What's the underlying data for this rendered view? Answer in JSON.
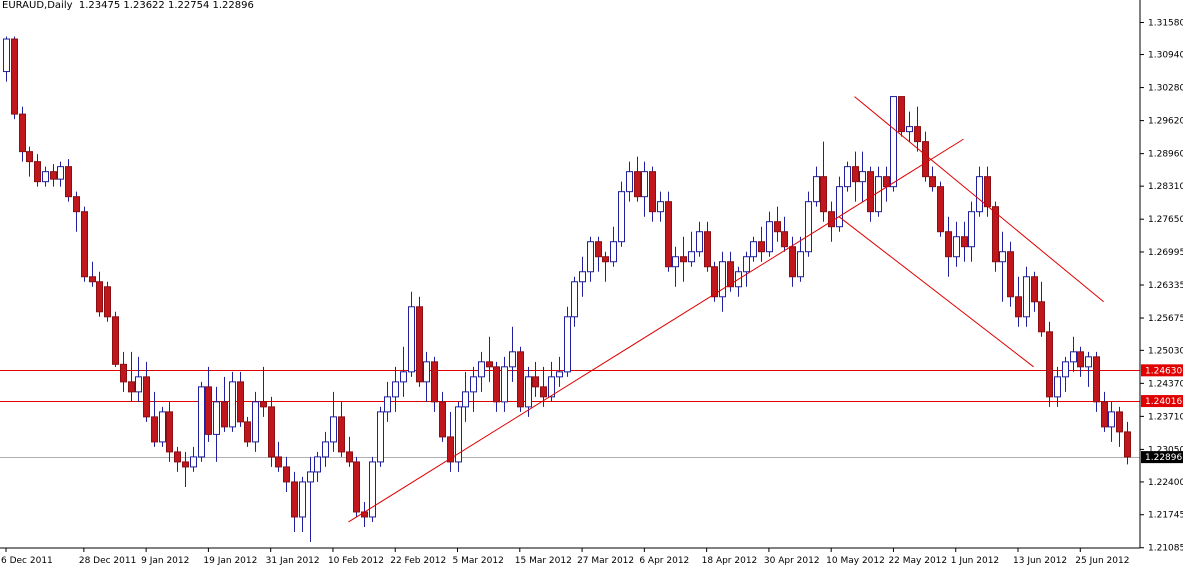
{
  "header": {
    "symbol_timeframe": "EURAUD,Daily",
    "ohlc": "1.23475 1.23622 1.22754 1.22896"
  },
  "colors": {
    "bull_fill": "#ffffff",
    "bear_fill": "#c0161c",
    "wick": "#1f1f9f",
    "trend": "#e00000",
    "hline": "#e00000",
    "price_label_bg": "#e00000",
    "current_label_bg": "#000000",
    "grid_line": "#b0b0b0"
  },
  "chart_data": {
    "type": "candlestick",
    "symbol": "EURAUD",
    "timeframe": "Daily",
    "ylim": [
      1.2108,
      1.3175
    ],
    "y_ticks": [
      "1.31580",
      "1.30940",
      "1.30280",
      "1.29620",
      "1.28960",
      "1.28310",
      "1.27650",
      "1.26995",
      "1.26335",
      "1.25675",
      "1.25030",
      "1.24370",
      "1.23710",
      "1.23050",
      "1.22400",
      "1.21745",
      "1.21085"
    ],
    "x_ticks": [
      {
        "label": "6 Dec 2011",
        "index": 0
      },
      {
        "label": "28 Dec 2011",
        "index": 10
      },
      {
        "label": "9 Jan 2012",
        "index": 18
      },
      {
        "label": "19 Jan 2012",
        "index": 26
      },
      {
        "label": "31 Jan 2012",
        "index": 34
      },
      {
        "label": "10 Feb 2012",
        "index": 42
      },
      {
        "label": "22 Feb 2012",
        "index": 50
      },
      {
        "label": "5 Mar 2012",
        "index": 58
      },
      {
        "label": "15 Mar 2012",
        "index": 66
      },
      {
        "label": "27 Mar 2012",
        "index": 74
      },
      {
        "label": "6 Apr 2012",
        "index": 82
      },
      {
        "label": "18 Apr 2012",
        "index": 90
      },
      {
        "label": "30 Apr 2012",
        "index": 98
      },
      {
        "label": "10 May 2012",
        "index": 106
      },
      {
        "label": "22 May 2012",
        "index": 114
      },
      {
        "label": "1 Jun 2012",
        "index": 122
      },
      {
        "label": "13 Jun 2012",
        "index": 130
      },
      {
        "label": "25 Jun 2012",
        "index": 138
      }
    ],
    "candles": [
      [
        1.306,
        1.313,
        1.304,
        1.3125
      ],
      [
        1.3125,
        1.313,
        1.2965,
        1.2975
      ],
      [
        1.2975,
        1.299,
        1.288,
        1.29
      ],
      [
        1.29,
        1.291,
        1.285,
        1.288
      ],
      [
        1.288,
        1.2895,
        1.283,
        1.284
      ],
      [
        1.284,
        1.287,
        1.283,
        1.286
      ],
      [
        1.286,
        1.2875,
        1.283,
        1.2845
      ],
      [
        1.2845,
        1.288,
        1.283,
        1.287
      ],
      [
        1.287,
        1.2885,
        1.28,
        1.281
      ],
      [
        1.281,
        1.282,
        1.274,
        1.278
      ],
      [
        1.278,
        1.279,
        1.264,
        1.265
      ],
      [
        1.265,
        1.268,
        1.263,
        1.264
      ],
      [
        1.264,
        1.266,
        1.257,
        1.258
      ],
      [
        1.263,
        1.264,
        1.256,
        1.257
      ],
      [
        1.257,
        1.258,
        1.247,
        1.2475
      ],
      [
        1.2475,
        1.25,
        1.242,
        1.244
      ],
      [
        1.244,
        1.25,
        1.24,
        1.242
      ],
      [
        1.242,
        1.249,
        1.24,
        1.245
      ],
      [
        1.245,
        1.248,
        1.236,
        1.237
      ],
      [
        1.237,
        1.242,
        1.231,
        1.232
      ],
      [
        1.232,
        1.239,
        1.231,
        1.238
      ],
      [
        1.238,
        1.24,
        1.228,
        1.23
      ],
      [
        1.23,
        1.231,
        1.226,
        1.228
      ],
      [
        1.228,
        1.23,
        1.223,
        1.227
      ],
      [
        1.227,
        1.231,
        1.226,
        1.229
      ],
      [
        1.229,
        1.244,
        1.228,
        1.243
      ],
      [
        1.243,
        1.247,
        1.232,
        1.2335
      ],
      [
        1.2335,
        1.243,
        1.228,
        1.24
      ],
      [
        1.24,
        1.245,
        1.234,
        1.235
      ],
      [
        1.235,
        1.246,
        1.234,
        1.244
      ],
      [
        1.244,
        1.246,
        1.235,
        1.236
      ],
      [
        1.236,
        1.237,
        1.231,
        1.232
      ],
      [
        1.232,
        1.242,
        1.23,
        1.24
      ],
      [
        1.24,
        1.247,
        1.237,
        1.239
      ],
      [
        1.239,
        1.241,
        1.227,
        1.229
      ],
      [
        1.229,
        1.232,
        1.226,
        1.227
      ],
      [
        1.227,
        1.229,
        1.222,
        1.224
      ],
      [
        1.224,
        1.226,
        1.214,
        1.217
      ],
      [
        1.217,
        1.225,
        1.214,
        1.224
      ],
      [
        1.224,
        1.229,
        1.212,
        1.226
      ],
      [
        1.226,
        1.23,
        1.224,
        1.229
      ],
      [
        1.229,
        1.234,
        1.227,
        1.232
      ],
      [
        1.232,
        1.242,
        1.23,
        1.237
      ],
      [
        1.237,
        1.24,
        1.229,
        1.23
      ],
      [
        1.23,
        1.233,
        1.227,
        1.228
      ],
      [
        1.228,
        1.229,
        1.217,
        1.218
      ],
      [
        1.218,
        1.22,
        1.215,
        1.217
      ],
      [
        1.217,
        1.229,
        1.216,
        1.228
      ],
      [
        1.228,
        1.239,
        1.227,
        1.238
      ],
      [
        1.238,
        1.244,
        1.236,
        1.241
      ],
      [
        1.241,
        1.247,
        1.238,
        1.244
      ],
      [
        1.244,
        1.251,
        1.241,
        1.246
      ],
      [
        1.246,
        1.262,
        1.245,
        1.259
      ],
      [
        1.259,
        1.261,
        1.243,
        1.244
      ],
      [
        1.244,
        1.25,
        1.24,
        1.248
      ],
      [
        1.248,
        1.249,
        1.238,
        1.24
      ],
      [
        1.24,
        1.242,
        1.232,
        1.233
      ],
      [
        1.233,
        1.238,
        1.226,
        1.228
      ],
      [
        1.228,
        1.24,
        1.226,
        1.239
      ],
      [
        1.239,
        1.246,
        1.236,
        1.242
      ],
      [
        1.242,
        1.247,
        1.238,
        1.245
      ],
      [
        1.245,
        1.25,
        1.242,
        1.248
      ],
      [
        1.248,
        1.253,
        1.244,
        1.247
      ],
      [
        1.247,
        1.248,
        1.238,
        1.24
      ],
      [
        1.24,
        1.249,
        1.238,
        1.247
      ],
      [
        1.247,
        1.255,
        1.244,
        1.25
      ],
      [
        1.25,
        1.251,
        1.238,
        1.239
      ],
      [
        1.239,
        1.247,
        1.237,
        1.245
      ],
      [
        1.245,
        1.248,
        1.241,
        1.243
      ],
      [
        1.243,
        1.247,
        1.239,
        1.241
      ],
      [
        1.241,
        1.248,
        1.24,
        1.245
      ],
      [
        1.245,
        1.249,
        1.243,
        1.246
      ],
      [
        1.246,
        1.259,
        1.245,
        1.257
      ],
      [
        1.257,
        1.265,
        1.255,
        1.264
      ],
      [
        1.264,
        1.269,
        1.261,
        1.266
      ],
      [
        1.266,
        1.273,
        1.264,
        1.272
      ],
      [
        1.272,
        1.273,
        1.266,
        1.269
      ],
      [
        1.269,
        1.27,
        1.264,
        1.268
      ],
      [
        1.268,
        1.275,
        1.267,
        1.272
      ],
      [
        1.272,
        1.284,
        1.271,
        1.282
      ],
      [
        1.282,
        1.288,
        1.28,
        1.286
      ],
      [
        1.286,
        1.289,
        1.28,
        1.281
      ],
      [
        1.281,
        1.288,
        1.277,
        1.286
      ],
      [
        1.286,
        1.287,
        1.276,
        1.278
      ],
      [
        1.278,
        1.282,
        1.276,
        1.28
      ],
      [
        1.28,
        1.282,
        1.266,
        1.267
      ],
      [
        1.267,
        1.271,
        1.263,
        1.269
      ],
      [
        1.269,
        1.273,
        1.264,
        1.268
      ],
      [
        1.268,
        1.274,
        1.267,
        1.27
      ],
      [
        1.27,
        1.276,
        1.269,
        1.274
      ],
      [
        1.274,
        1.276,
        1.266,
        1.267
      ],
      [
        1.267,
        1.268,
        1.26,
        1.261
      ],
      [
        1.261,
        1.27,
        1.258,
        1.268
      ],
      [
        1.268,
        1.27,
        1.262,
        1.263
      ],
      [
        1.263,
        1.267,
        1.261,
        1.266
      ],
      [
        1.266,
        1.27,
        1.263,
        1.269
      ],
      [
        1.269,
        1.273,
        1.268,
        1.272
      ],
      [
        1.272,
        1.275,
        1.268,
        1.27
      ],
      [
        1.27,
        1.278,
        1.269,
        1.276
      ],
      [
        1.276,
        1.279,
        1.272,
        1.274
      ],
      [
        1.274,
        1.277,
        1.27,
        1.271
      ],
      [
        1.271,
        1.273,
        1.263,
        1.265
      ],
      [
        1.265,
        1.273,
        1.264,
        1.27
      ],
      [
        1.27,
        1.282,
        1.269,
        1.28
      ],
      [
        1.28,
        1.287,
        1.279,
        1.285
      ],
      [
        1.285,
        1.292,
        1.276,
        1.278
      ],
      [
        1.278,
        1.28,
        1.272,
        1.275
      ],
      [
        1.275,
        1.285,
        1.274,
        1.283
      ],
      [
        1.283,
        1.288,
        1.282,
        1.287
      ],
      [
        1.287,
        1.29,
        1.28,
        1.284
      ],
      [
        1.284,
        1.29,
        1.28,
        1.286
      ],
      [
        1.286,
        1.287,
        1.276,
        1.278
      ],
      [
        1.278,
        1.287,
        1.277,
        1.285
      ],
      [
        1.285,
        1.287,
        1.28,
        1.283
      ],
      [
        1.283,
        1.301,
        1.282,
        1.301
      ],
      [
        1.301,
        1.301,
        1.293,
        1.294
      ],
      [
        1.294,
        1.298,
        1.292,
        1.295
      ],
      [
        1.295,
        1.299,
        1.29,
        1.292
      ],
      [
        1.292,
        1.294,
        1.284,
        1.285
      ],
      [
        1.285,
        1.287,
        1.282,
        1.283
      ],
      [
        1.283,
        1.284,
        1.273,
        1.274
      ],
      [
        1.274,
        1.277,
        1.265,
        1.269
      ],
      [
        1.269,
        1.276,
        1.267,
        1.273
      ],
      [
        1.273,
        1.276,
        1.268,
        1.271
      ],
      [
        1.271,
        1.28,
        1.268,
        1.278
      ],
      [
        1.278,
        1.287,
        1.277,
        1.285
      ],
      [
        1.285,
        1.287,
        1.277,
        1.279
      ],
      [
        1.279,
        1.28,
        1.266,
        1.268
      ],
      [
        1.268,
        1.274,
        1.26,
        1.27
      ],
      [
        1.27,
        1.272,
        1.259,
        1.261
      ],
      [
        1.261,
        1.265,
        1.255,
        1.257
      ],
      [
        1.257,
        1.267,
        1.255,
        1.265
      ],
      [
        1.265,
        1.266,
        1.258,
        1.26
      ],
      [
        1.26,
        1.264,
        1.253,
        1.254
      ],
      [
        1.254,
        1.256,
        1.239,
        1.241
      ],
      [
        1.241,
        1.247,
        1.239,
        1.245
      ],
      [
        1.245,
        1.249,
        1.242,
        1.248
      ],
      [
        1.248,
        1.253,
        1.246,
        1.25
      ],
      [
        1.25,
        1.251,
        1.245,
        1.247
      ],
      [
        1.247,
        1.25,
        1.243,
        1.249
      ],
      [
        1.249,
        1.25,
        1.238,
        1.24
      ],
      [
        1.24,
        1.242,
        1.234,
        1.235
      ],
      [
        1.235,
        1.24,
        1.232,
        1.238
      ],
      [
        1.238,
        1.239,
        1.231,
        1.234
      ],
      [
        1.234,
        1.236,
        1.2275,
        1.229
      ]
    ],
    "trendlines": [
      {
        "from": {
          "index": 44,
          "price": 1.216
        },
        "to": {
          "index": 123,
          "price": 1.2925
        }
      },
      {
        "from": {
          "index": 107,
          "price": 1.277
        },
        "to": {
          "index": 132,
          "price": 1.247
        }
      },
      {
        "from": {
          "index": 109,
          "price": 1.301
        },
        "to": {
          "index": 141,
          "price": 1.26
        }
      }
    ],
    "horizontal_levels": [
      {
        "price": 1.2463,
        "label": "1.24630"
      },
      {
        "price": 1.24016,
        "label": "1.24016"
      }
    ],
    "current_price": {
      "price": 1.22896,
      "label": "1.22896"
    }
  }
}
